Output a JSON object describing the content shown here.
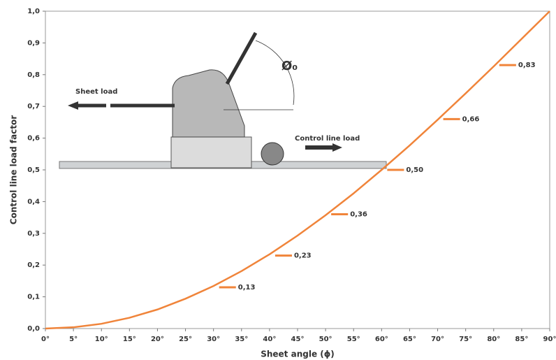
{
  "chart_data": {
    "type": "line",
    "x_label": "Sheet angle (ϕ)",
    "y_label": "Control line load factor",
    "x": [
      0,
      5,
      10,
      15,
      20,
      25,
      30,
      35,
      40,
      45,
      50,
      55,
      60,
      65,
      70,
      75,
      80,
      85,
      90
    ],
    "series": [
      {
        "color": "#f0843a",
        "values": [
          0,
          0.004,
          0.015,
          0.034,
          0.06,
          0.094,
          0.134,
          0.181,
          0.234,
          0.293,
          0.357,
          0.426,
          0.5,
          0.577,
          0.658,
          0.741,
          0.826,
          0.913,
          1.0
        ]
      }
    ],
    "labels": {
      "x": [
        30,
        40,
        50,
        60,
        70,
        80
      ],
      "values": [
        0.13,
        0.23,
        0.36,
        0.5,
        0.66,
        0.83
      ],
      "value_labels": [
        "0,13",
        "0,23",
        "0,36",
        "0,50",
        "0,66",
        "0,83"
      ],
      "color": "#f0843a"
    },
    "xlim": [
      0,
      90
    ],
    "ylim": [
      0,
      1
    ],
    "xticks": [
      {
        "value": 0,
        "label": "0°"
      },
      {
        "value": 5,
        "label": "5°"
      },
      {
        "value": 10,
        "label": "10°"
      },
      {
        "value": 15,
        "label": "15°"
      },
      {
        "value": 20,
        "label": "20°"
      },
      {
        "value": 25,
        "label": "25°"
      },
      {
        "value": 30,
        "label": "30°"
      },
      {
        "value": 35,
        "label": "35°"
      },
      {
        "value": 40,
        "label": "40°"
      },
      {
        "value": 45,
        "label": "45°"
      },
      {
        "value": 50,
        "label": "50°"
      },
      {
        "value": 55,
        "label": "55°"
      },
      {
        "value": 60,
        "label": "60°"
      },
      {
        "value": 65,
        "label": "65°"
      },
      {
        "value": 70,
        "label": "70°"
      },
      {
        "value": 75,
        "label": "75°"
      },
      {
        "value": 80,
        "label": "80°"
      },
      {
        "value": 85,
        "label": "85°"
      },
      {
        "value": 90,
        "label": "90°"
      }
    ],
    "yticks": [
      {
        "value": 0,
        "label": "0,0"
      },
      {
        "value": 0.1,
        "label": "0,1"
      },
      {
        "value": 0.2,
        "label": "0,2"
      },
      {
        "value": 0.3,
        "label": "0,3"
      },
      {
        "value": 0.4,
        "label": "0,4"
      },
      {
        "value": 0.5,
        "label": "0,5"
      },
      {
        "value": 0.6,
        "label": "0,6"
      },
      {
        "value": 0.7,
        "label": "0,7"
      },
      {
        "value": 0.8,
        "label": "0,8"
      },
      {
        "value": 0.9,
        "label": "0,9"
      },
      {
        "value": 1.0,
        "label": "1,0"
      }
    ],
    "annotations": [
      "Sheet load",
      "Control line load",
      "Ø₀"
    ]
  }
}
